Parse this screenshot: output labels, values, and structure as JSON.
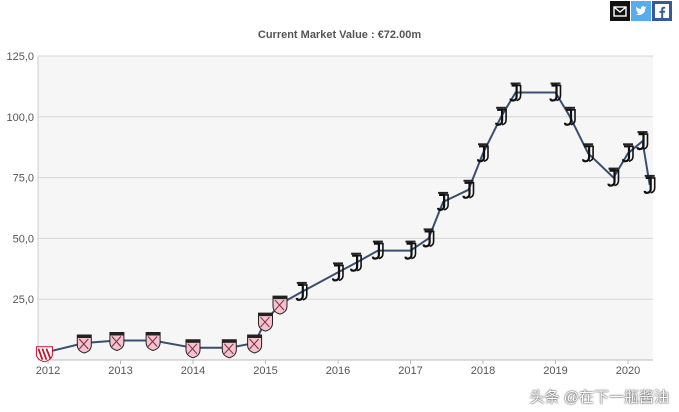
{
  "share_buttons": [
    {
      "name": "email",
      "icon": "envelope-icon",
      "bg": "#111111"
    },
    {
      "name": "twitter",
      "icon": "twitter-bird-icon",
      "bg": "#55acee"
    },
    {
      "name": "facebook",
      "icon": "facebook-f-icon",
      "bg": "#3b5998"
    }
  ],
  "watermark": "头条 @在下一瓶酱油",
  "colors": {
    "line": "#3a4f6e",
    "grid": "#d6d6d6",
    "plot_bg": "#f6f6f6",
    "axis_text": "#555555",
    "title": "#555555"
  },
  "chart_data": {
    "type": "line",
    "title": "Current Market Value : €72.00m",
    "xlabel": "",
    "ylabel": "",
    "xlim": [
      2012.0,
      2020.35
    ],
    "ylim": [
      0,
      125
    ],
    "x_ticks": [
      2012,
      2013,
      2014,
      2015,
      2016,
      2017,
      2018,
      2019,
      2020
    ],
    "x_tick_labels": [
      "2012",
      "2013",
      "2014",
      "2015",
      "2016",
      "2017",
      "2018",
      "2019",
      "2020"
    ],
    "y_ticks": [
      25,
      50,
      75,
      100,
      125
    ],
    "y_tick_labels": [
      "25,0",
      "50,0",
      "75,0",
      "100,0",
      "125,0"
    ],
    "grid": true,
    "series": [
      {
        "name": "Market value",
        "points": [
          {
            "x": 2011.95,
            "y": 3,
            "club": "Vicenza"
          },
          {
            "x": 2012.5,
            "y": 7,
            "club": "Palermo"
          },
          {
            "x": 2012.95,
            "y": 8,
            "club": "Palermo"
          },
          {
            "x": 2013.45,
            "y": 8,
            "club": "Palermo"
          },
          {
            "x": 2014.0,
            "y": 5,
            "club": "Palermo"
          },
          {
            "x": 2014.5,
            "y": 5,
            "club": "Palermo"
          },
          {
            "x": 2014.85,
            "y": 7,
            "club": "Palermo"
          },
          {
            "x": 2015.0,
            "y": 16,
            "club": "Palermo"
          },
          {
            "x": 2015.2,
            "y": 23,
            "club": "Palermo"
          },
          {
            "x": 2015.5,
            "y": 28,
            "club": "Juventus"
          },
          {
            "x": 2016.0,
            "y": 36,
            "club": "Juventus"
          },
          {
            "x": 2016.25,
            "y": 40,
            "club": "Juventus"
          },
          {
            "x": 2016.55,
            "y": 45,
            "club": "Juventus"
          },
          {
            "x": 2017.0,
            "y": 45,
            "club": "Juventus"
          },
          {
            "x": 2017.25,
            "y": 50,
            "club": "Juventus"
          },
          {
            "x": 2017.45,
            "y": 65,
            "club": "Juventus"
          },
          {
            "x": 2017.8,
            "y": 70,
            "club": "Juventus"
          },
          {
            "x": 2018.0,
            "y": 85,
            "club": "Juventus"
          },
          {
            "x": 2018.25,
            "y": 100,
            "club": "Juventus"
          },
          {
            "x": 2018.45,
            "y": 110,
            "club": "Juventus"
          },
          {
            "x": 2019.0,
            "y": 110,
            "club": "Juventus"
          },
          {
            "x": 2019.2,
            "y": 100,
            "club": "Juventus"
          },
          {
            "x": 2019.45,
            "y": 85,
            "club": "Juventus"
          },
          {
            "x": 2019.8,
            "y": 75,
            "club": "Juventus"
          },
          {
            "x": 2020.0,
            "y": 85,
            "club": "Juventus"
          },
          {
            "x": 2020.2,
            "y": 90,
            "club": "Juventus"
          },
          {
            "x": 2020.3,
            "y": 72,
            "club": "Juventus"
          }
        ]
      }
    ]
  }
}
